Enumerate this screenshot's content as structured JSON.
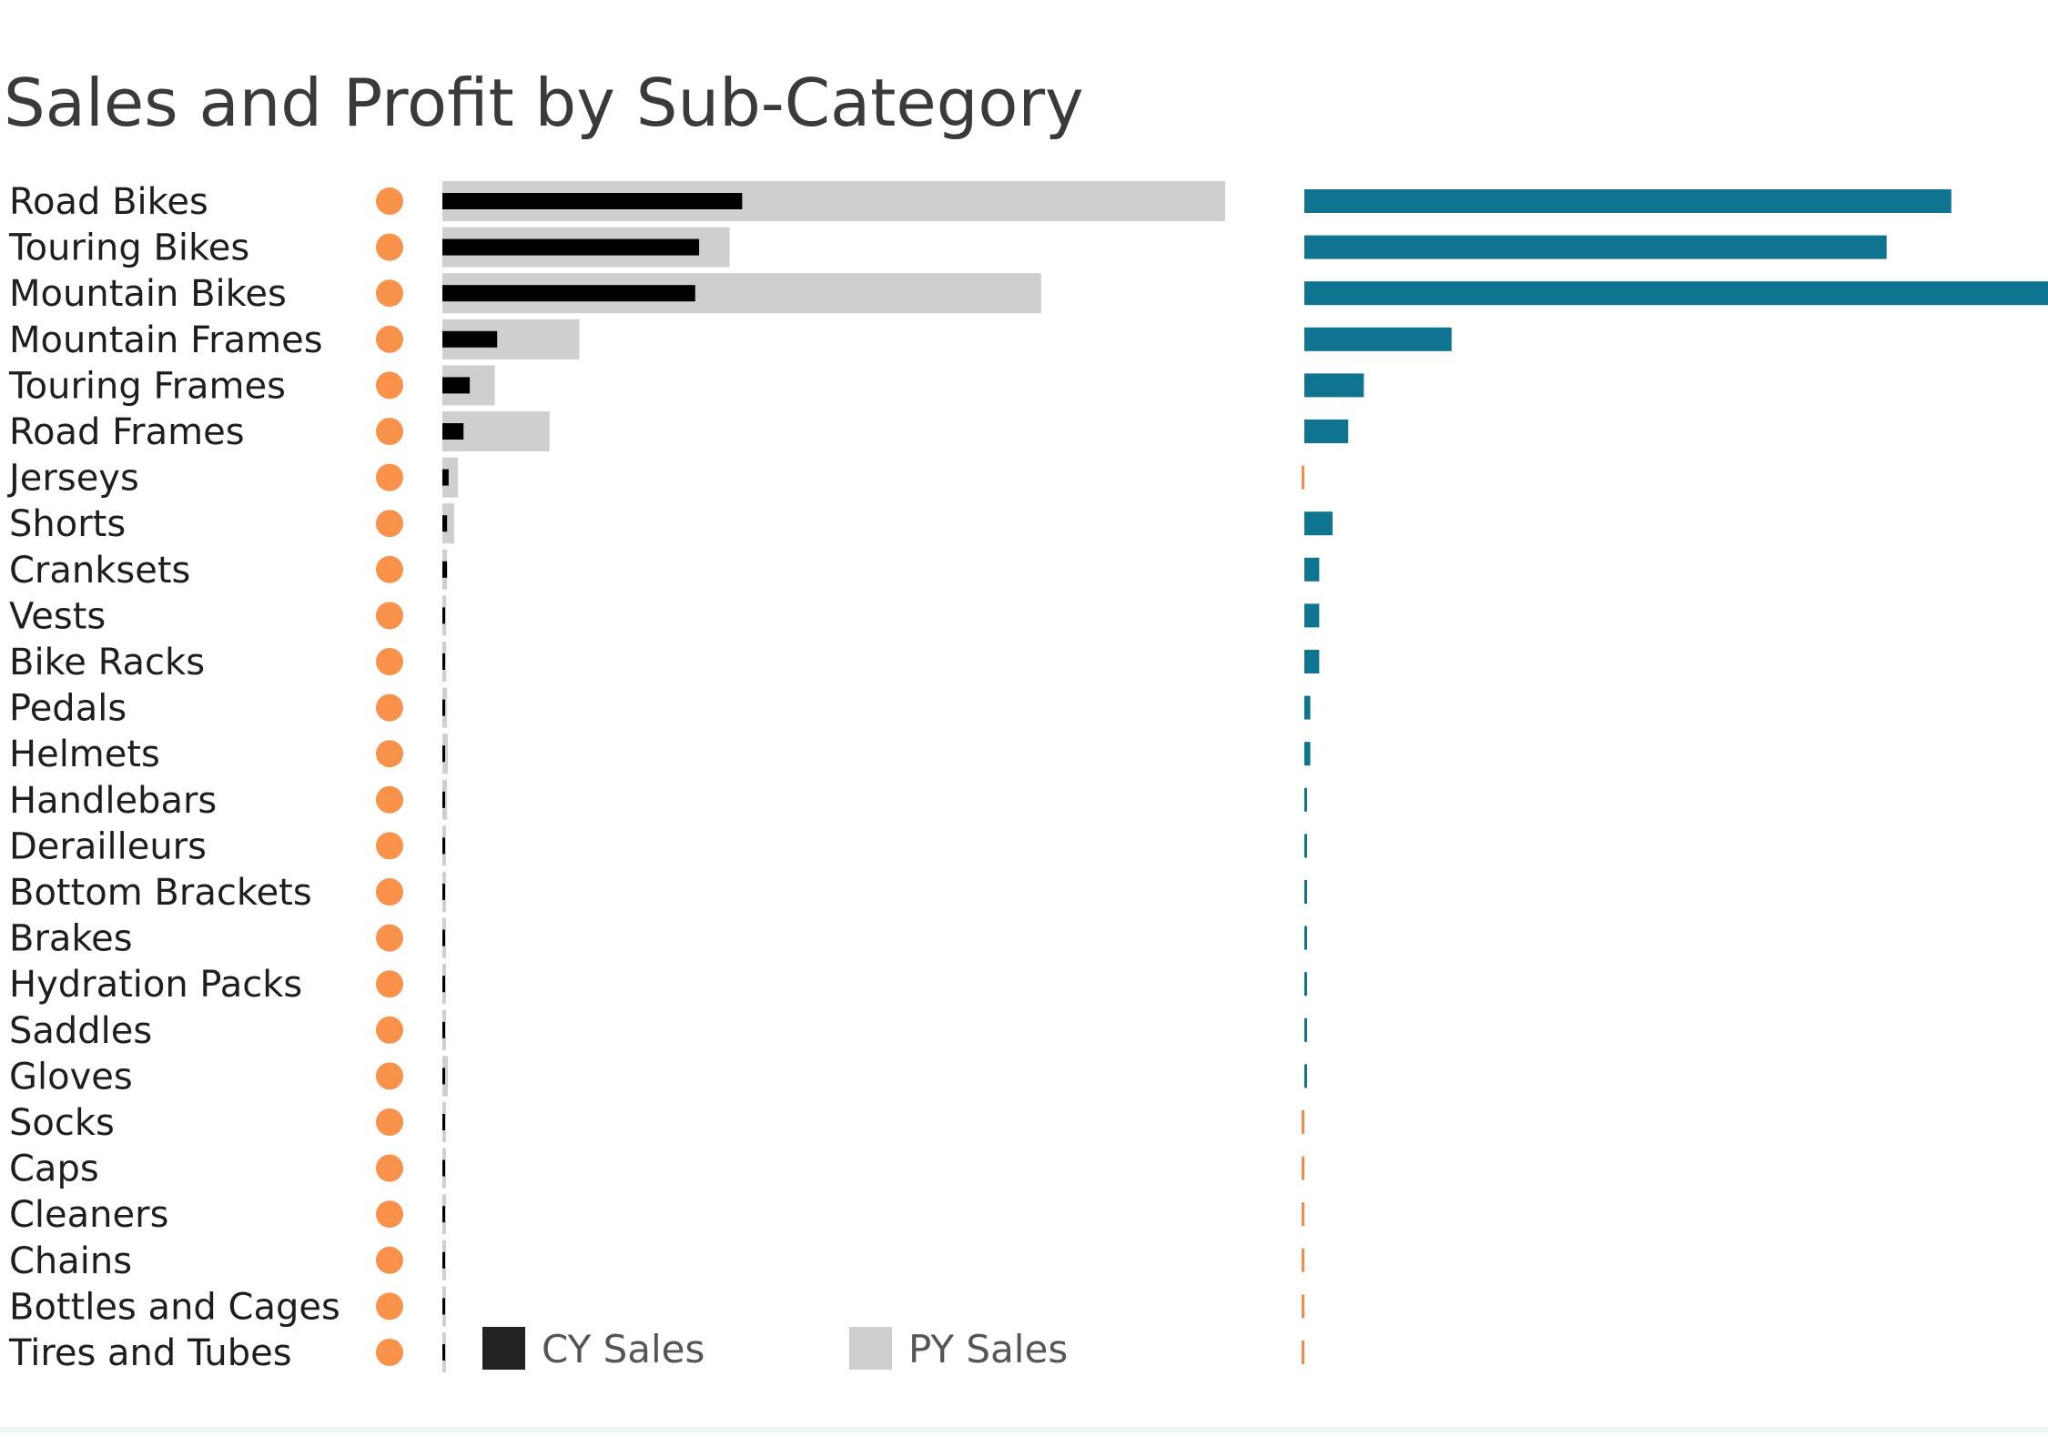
{
  "chart_data": {
    "type": "bar",
    "title": "Sales and Profit by Sub-Category",
    "categories": [
      "Road Bikes",
      "Touring Bikes",
      "Mountain Bikes",
      "Mountain Frames",
      "Touring Frames",
      "Road Frames",
      "Jerseys",
      "Shorts",
      "Cranksets",
      "Vests",
      "Bike Racks",
      "Pedals",
      "Helmets",
      "Handlebars",
      "Derailleurs",
      "Bottom Brackets",
      "Brakes",
      "Hydration Packs",
      "Saddles",
      "Gloves",
      "Socks",
      "Caps",
      "Cleaners",
      "Chains",
      "Bottles and Cages",
      "Tires and Tubes"
    ],
    "series": [
      {
        "name": "CY Sales",
        "values": [
          3.83,
          3.28,
          3.23,
          0.7,
          0.35,
          0.27,
          0.08,
          0.06,
          0.06,
          0.03,
          0.03,
          0.03,
          0.03,
          0.03,
          0.02,
          0.02,
          0.02,
          0.02,
          0.02,
          0.03,
          0.02,
          0.02,
          0.02,
          0.02,
          0.02,
          0.02
        ]
      },
      {
        "name": "PY Sales",
        "values": [
          10.0,
          3.67,
          7.65,
          1.75,
          0.67,
          1.37,
          0.2,
          0.15,
          0.06,
          0.05,
          0.05,
          0.06,
          0.07,
          0.06,
          0.03,
          0.03,
          0.03,
          0.03,
          0.03,
          0.07,
          0.02,
          0.02,
          0.02,
          0.02,
          0.02,
          0.02
        ]
      },
      {
        "values": [
          8.7,
          7.83,
          10.0,
          1.98,
          0.8,
          0.59,
          -0.03,
          0.38,
          0.2,
          0.2,
          0.2,
          0.08,
          0.08,
          0.03,
          0.03,
          0.03,
          0.03,
          0.03,
          0.03,
          0.03,
          -0.03,
          -0.03,
          -0.03,
          -0.03,
          -0.03,
          -0.03
        ]
      }
    ],
    "kpi_status": "negative",
    "legend": [
      "CY Sales",
      "PY Sales"
    ],
    "legend_placement": "bottom",
    "colors": {
      "cy_sales": "#000000",
      "py_sales": "#cfcfcf",
      "profit_positive": "#0e7490",
      "profit_negative": "#f28a4a",
      "indicator": "#f8914a",
      "title": "#3a3a3a",
      "label": "#1e1e1e"
    },
    "grid": false
  }
}
